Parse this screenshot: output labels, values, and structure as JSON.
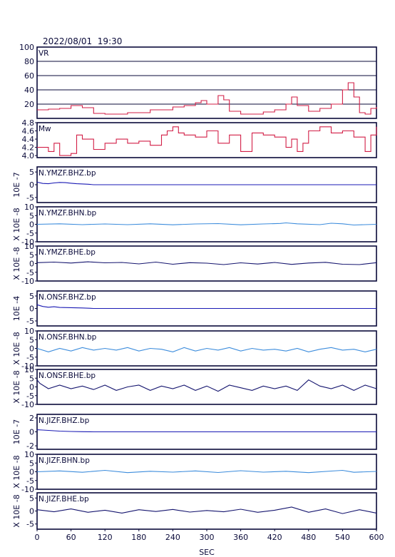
{
  "header": {
    "datetime": "2022/08/01  19:30"
  },
  "chart_data": {
    "type": "line",
    "xlabel": "SEC",
    "xlim": [
      0,
      600
    ],
    "xticks": [
      "0",
      "60",
      "120",
      "180",
      "240",
      "300",
      "360",
      "420",
      "480",
      "540",
      "600"
    ],
    "colors": {
      "frame": "#0a0a3a",
      "vr": "#d21e46",
      "mw": "#d21e46",
      "bhz": "#1a1ab4",
      "bhn": "#3c8cdc",
      "bhe": "#14146e"
    },
    "vr": {
      "name": "VR",
      "ylim": [
        0,
        100
      ],
      "yticks": [
        "100",
        "80",
        "60",
        "40",
        "20"
      ],
      "x": [
        0,
        20,
        40,
        60,
        80,
        100,
        120,
        160,
        200,
        240,
        260,
        280,
        290,
        300,
        320,
        330,
        340,
        360,
        380,
        400,
        420,
        440,
        450,
        460,
        480,
        500,
        520,
        540,
        550,
        560,
        570,
        580,
        590,
        600
      ],
      "values": [
        12,
        13,
        14,
        18,
        15,
        7,
        6,
        8,
        12,
        16,
        18,
        22,
        25,
        20,
        32,
        26,
        10,
        6,
        6,
        9,
        12,
        20,
        30,
        18,
        10,
        14,
        20,
        40,
        50,
        30,
        8,
        6,
        14,
        16
      ]
    },
    "mw": {
      "name": "Mw",
      "ylim": [
        3.95,
        4.8
      ],
      "yticks": [
        "4.8",
        "4.6",
        "4.4",
        "4.2",
        "4.0"
      ],
      "x": [
        0,
        20,
        30,
        40,
        60,
        70,
        80,
        100,
        120,
        140,
        160,
        180,
        200,
        220,
        230,
        240,
        250,
        260,
        280,
        300,
        320,
        340,
        360,
        380,
        400,
        420,
        440,
        450,
        460,
        470,
        480,
        500,
        520,
        540,
        560,
        580,
        590,
        600
      ],
      "values": [
        4.2,
        4.1,
        4.3,
        4.0,
        4.05,
        4.5,
        4.4,
        4.15,
        4.3,
        4.4,
        4.3,
        4.35,
        4.25,
        4.5,
        4.6,
        4.7,
        4.55,
        4.5,
        4.45,
        4.6,
        4.3,
        4.5,
        4.1,
        4.55,
        4.5,
        4.45,
        4.2,
        4.4,
        4.1,
        4.3,
        4.6,
        4.7,
        4.55,
        4.6,
        4.45,
        4.1,
        4.5,
        4.7
      ]
    },
    "traces": [
      {
        "station": "N.YMZF",
        "label": "N.YMZF.BHZ.bp",
        "comp": "bhz",
        "scale": "10E -7",
        "ylim": [
          -7,
          7
        ],
        "yticks": [
          5,
          0,
          -5
        ],
        "x": [
          0,
          10,
          20,
          30,
          40,
          50,
          60,
          70,
          80,
          90,
          100,
          600
        ],
        "values": [
          1.0,
          0.5,
          0.4,
          0.7,
          0.9,
          0.8,
          0.6,
          0.4,
          0.3,
          0.2,
          0,
          0
        ]
      },
      {
        "station": "N.YMZF",
        "label": "N.YMZF.BHN.bp",
        "comp": "bhn",
        "scale": "X 10E -8",
        "ylim": [
          -10,
          10
        ],
        "yticks": [
          10,
          5,
          0,
          -5,
          -10
        ],
        "x": [
          0,
          40,
          80,
          120,
          160,
          200,
          240,
          280,
          320,
          360,
          400,
          430,
          440,
          460,
          500,
          520,
          540,
          560,
          600
        ],
        "values": [
          0,
          0.3,
          -0.2,
          0.2,
          -0.2,
          0.3,
          -0.3,
          0.2,
          0.4,
          -0.3,
          0.2,
          0.5,
          0.8,
          0.3,
          -0.2,
          0.6,
          0.3,
          -0.4,
          0
        ]
      },
      {
        "station": "N.YMZF",
        "label": "N.YMZF.BHE.bp",
        "comp": "bhe",
        "scale": "X 10E -8",
        "ylim": [
          -10,
          10
        ],
        "yticks": [
          10,
          5,
          0,
          -5,
          -10
        ],
        "x": [
          0,
          30,
          60,
          90,
          120,
          150,
          180,
          210,
          240,
          270,
          300,
          330,
          360,
          390,
          420,
          450,
          480,
          510,
          540,
          570,
          600
        ],
        "values": [
          0.5,
          0.8,
          0.3,
          1.0,
          0.4,
          0.6,
          -0.2,
          0.8,
          -0.4,
          0.5,
          0.2,
          -0.6,
          0.4,
          -0.3,
          0.6,
          -0.5,
          0.3,
          0.7,
          -0.4,
          -0.6,
          0.5
        ]
      },
      {
        "station": "N.ONSF",
        "label": "N.ONSF.BHZ.bp",
        "comp": "bhz",
        "scale": "10E -4",
        "ylim": [
          -7,
          7
        ],
        "yticks": [
          5,
          0,
          -5
        ],
        "x": [
          0,
          10,
          20,
          30,
          40,
          60,
          80,
          100,
          600
        ],
        "values": [
          1.5,
          0.8,
          0.5,
          0.7,
          0.4,
          0.3,
          0.2,
          0,
          0
        ]
      },
      {
        "station": "N.ONSF",
        "label": "N.ONSF.BHN.bp",
        "comp": "bhn",
        "scale": "X 10E -8",
        "ylim": [
          -10,
          10
        ],
        "yticks": [
          10,
          5,
          0,
          -5,
          -10
        ],
        "x": [
          0,
          20,
          40,
          60,
          80,
          100,
          120,
          140,
          160,
          180,
          200,
          220,
          240,
          260,
          280,
          300,
          320,
          340,
          360,
          380,
          400,
          420,
          440,
          460,
          480,
          500,
          520,
          540,
          560,
          580,
          600
        ],
        "values": [
          0,
          -2,
          0,
          -1.5,
          0.5,
          -1,
          0,
          -1,
          0.5,
          -1.5,
          0,
          -0.5,
          -2,
          0.5,
          -1.5,
          0,
          -1,
          0.5,
          -1.5,
          0,
          -1,
          -0.5,
          -1.5,
          0,
          -2,
          -0.5,
          0.5,
          -1,
          -0.5,
          -2,
          -0.5
        ]
      },
      {
        "station": "N.ONSF",
        "label": "N.ONSF.BHE.bp",
        "comp": "bhe",
        "scale": "X 10E -8",
        "ylim": [
          -10,
          10
        ],
        "yticks": [
          10,
          5,
          0,
          -5,
          -10
        ],
        "x": [
          0,
          5,
          20,
          40,
          60,
          80,
          100,
          120,
          140,
          160,
          180,
          200,
          220,
          240,
          260,
          280,
          300,
          320,
          340,
          360,
          380,
          400,
          420,
          440,
          460,
          480,
          500,
          520,
          540,
          560,
          580,
          600
        ],
        "values": [
          4,
          2,
          -1,
          1,
          -1,
          0.5,
          -1.5,
          1,
          -2,
          0,
          1,
          -2,
          0.5,
          -1,
          1,
          -2,
          0.5,
          -2.5,
          1,
          -0.5,
          -2,
          0.5,
          -1,
          0.5,
          -2,
          4,
          0.5,
          -1,
          1,
          -2,
          1,
          -1
        ]
      },
      {
        "station": "N.JIZF",
        "label": "N.JIZF.BHZ.bp",
        "comp": "bhz",
        "scale": "10E -7",
        "ylim": [
          -2.5,
          2.5
        ],
        "yticks": [
          2,
          0,
          -2
        ],
        "x": [
          0,
          10,
          20,
          30,
          40,
          60,
          80,
          100,
          600
        ],
        "values": [
          0.3,
          0.25,
          0.2,
          0.15,
          0.1,
          0.05,
          0.02,
          0,
          0
        ]
      },
      {
        "station": "N.JIZF",
        "label": "N.JIZF.BHN.bp",
        "comp": "bhn",
        "scale": "X 10E -8",
        "ylim": [
          -10,
          10
        ],
        "yticks": [
          10,
          5,
          0,
          -5,
          -10
        ],
        "x": [
          0,
          40,
          80,
          120,
          160,
          200,
          240,
          280,
          320,
          360,
          400,
          440,
          480,
          520,
          540,
          560,
          600
        ],
        "values": [
          0,
          0.5,
          -0.3,
          0.8,
          -0.5,
          0.3,
          -0.2,
          0.5,
          -0.4,
          0.6,
          -0.2,
          0.3,
          -0.5,
          0.4,
          0.8,
          -0.3,
          0.2
        ]
      },
      {
        "station": "N.JIZF",
        "label": "N.JIZF.BHE.bp",
        "comp": "bhe",
        "scale": "X 10E -8",
        "ylim": [
          -7,
          7
        ],
        "yticks": [
          5,
          0,
          -5
        ],
        "x": [
          0,
          30,
          60,
          90,
          120,
          150,
          180,
          210,
          240,
          270,
          300,
          330,
          360,
          390,
          420,
          450,
          480,
          510,
          540,
          570,
          600
        ],
        "values": [
          0.5,
          -0.3,
          0.8,
          -0.5,
          0.3,
          -0.8,
          0.5,
          -0.2,
          0.6,
          -0.4,
          0.2,
          -0.3,
          0.7,
          -0.5,
          0.3,
          1.5,
          -0.5,
          0.8,
          -1.0,
          0.5,
          -0.8
        ]
      }
    ]
  }
}
